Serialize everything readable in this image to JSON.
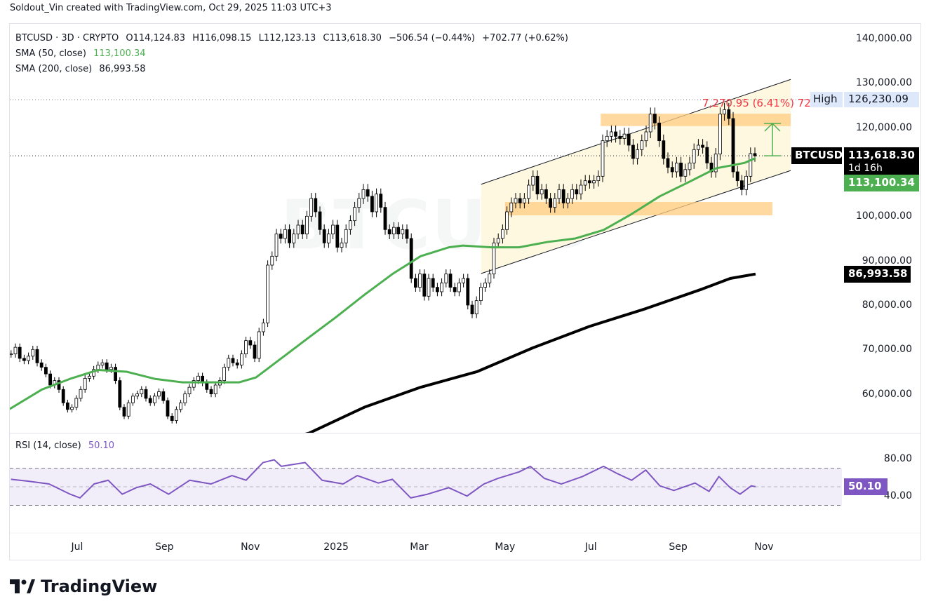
{
  "credit": "Soldout_Vin created with TradingView.com, Oct 29, 2025 11:03 UTC+3",
  "legend": {
    "symbol_line": "BTCUSD · 3D · CRYPTO",
    "open": "O114,124.83",
    "high": "H116,098.15",
    "low": "L112,123.13",
    "close": "C113,618.30",
    "change": "−506.54 (−0.44%)",
    "change2": "+702.77 (+0.62%)",
    "sma50_label": "SMA (50, close)",
    "sma50_value": "113,100.34",
    "sma200_label": "SMA (200, close)",
    "sma200_value": "86,993.58",
    "rsi_label": "RSI (14, close)",
    "rsi_value": "50.10"
  },
  "watermark": "BTCUSD",
  "colors": {
    "up_body": "#ffffff",
    "down_body": "#000000",
    "sma50": "#4caf50",
    "sma200": "#000000",
    "rsi": "#7e57c2",
    "zone": "#ffcc80",
    "channel_fill": "#fff8e1",
    "measure_text": "#f23645",
    "measure_arrow": "#4caf50"
  },
  "chart_data": [
    {
      "type": "candlestick",
      "interval": "3D",
      "ylim": [
        53000,
        146000
      ],
      "y_ticks": [
        "140,000.00",
        "130,000.00",
        "120,000.00",
        "100,000.00",
        "90,000.00",
        "80,000.00",
        "70,000.00",
        "60,000.00"
      ],
      "y_tick_values": [
        140000,
        130000,
        120000,
        100000,
        90000,
        80000,
        70000,
        60000
      ],
      "x_ticks": [
        {
          "label": "Jul",
          "date": "2024-07-01"
        },
        {
          "label": "Sep",
          "date": "2024-09-01"
        },
        {
          "label": "Nov",
          "date": "2024-11-01"
        },
        {
          "label": "2025",
          "date": "2025-01-01"
        },
        {
          "label": "Mar",
          "date": "2025-03-01"
        },
        {
          "label": "May",
          "date": "2025-05-01"
        },
        {
          "label": "Jul",
          "date": "2025-07-01"
        },
        {
          "label": "Sep",
          "date": "2025-09-01"
        },
        {
          "label": "Nov",
          "date": "2025-11-01"
        }
      ],
      "closes": [
        69000,
        70500,
        68000,
        67500,
        68500,
        70000,
        67000,
        66000,
        64500,
        62000,
        63000,
        61000,
        58000,
        56500,
        57000,
        59000,
        61000,
        63500,
        64000,
        65500,
        66500,
        67000,
        65500,
        66000,
        63000,
        57000,
        55000,
        58000,
        59500,
        60000,
        61000,
        59000,
        58000,
        59500,
        60500,
        58500,
        55000,
        54000,
        56500,
        58000,
        60000,
        61500,
        63000,
        64000,
        62500,
        61000,
        60000,
        62000,
        63000,
        66000,
        68000,
        67000,
        66500,
        69000,
        72000,
        71000,
        68000,
        74000,
        76000,
        89000,
        91000,
        96000,
        95000,
        97000,
        94000,
        96000,
        98000,
        96000,
        100000,
        104000,
        101000,
        97000,
        94000,
        96000,
        98000,
        93000,
        94000,
        97000,
        99000,
        102000,
        104000,
        106000,
        104500,
        101000,
        105000,
        102000,
        97000,
        96000,
        97500,
        96000,
        97000,
        95000,
        86000,
        84000,
        87000,
        82000,
        86000,
        84000,
        83000,
        85000,
        87000,
        84000,
        83000,
        85000,
        86000,
        80000,
        78000,
        81000,
        84000,
        85000,
        87000,
        94000,
        95000,
        97000,
        101000,
        103000,
        104000,
        103000,
        104000,
        107000,
        109000,
        105000,
        106000,
        104000,
        102000,
        104000,
        106000,
        103000,
        104000,
        106000,
        105000,
        107000,
        108000,
        107500,
        108000,
        109000,
        117000,
        118000,
        119000,
        118000,
        117500,
        118500,
        116000,
        113000,
        115000,
        117000,
        119000,
        123000,
        121000,
        117000,
        113000,
        111000,
        110000,
        112000,
        109000,
        110500,
        112000,
        115000,
        116000,
        115500,
        112000,
        110000,
        114000,
        123000,
        124000,
        122000,
        110000,
        108000,
        106000,
        109000,
        114124.83,
        113618.3
      ],
      "current": {
        "symbol": "BTCUSD",
        "price": "113,618.30",
        "countdown": "1d 16h",
        "value": 113618.3
      },
      "high_marker": {
        "label": "High",
        "price": "126,230.09",
        "value": 126230.09
      },
      "series": [
        {
          "name": "SMA (50, close)",
          "tag": "113,100.34",
          "points": [
            [
              "2024-05-14",
              56600
            ],
            [
              "2024-06-06",
              61000
            ],
            [
              "2024-06-26",
              63400
            ],
            [
              "2024-07-16",
              65400
            ],
            [
              "2024-08-05",
              65000
            ],
            [
              "2024-08-25",
              63400
            ],
            [
              "2024-09-14",
              62600
            ],
            [
              "2024-10-04",
              62600
            ],
            [
              "2024-10-24",
              62600
            ],
            [
              "2024-11-05",
              63700
            ],
            [
              "2024-11-23",
              68000
            ],
            [
              "2024-12-13",
              72800
            ],
            [
              "2025-01-01",
              77300
            ],
            [
              "2025-01-21",
              82300
            ],
            [
              "2025-02-10",
              87000
            ],
            [
              "2025-03-02",
              91000
            ],
            [
              "2025-03-22",
              93000
            ],
            [
              "2025-04-01",
              93400
            ],
            [
              "2025-04-21",
              93000
            ],
            [
              "2025-05-11",
              93000
            ],
            [
              "2025-05-31",
              94200
            ],
            [
              "2025-06-20",
              95000
            ],
            [
              "2025-07-10",
              96900
            ],
            [
              "2025-07-30",
              100500
            ],
            [
              "2025-08-19",
              104500
            ],
            [
              "2025-09-08",
              107600
            ],
            [
              "2025-09-28",
              110800
            ],
            [
              "2025-10-18",
              112000
            ],
            [
              "2025-10-26",
              113100.34
            ]
          ]
        },
        {
          "name": "SMA (200, close)",
          "tag": "86,993.58",
          "points": [
            [
              "2024-11-23",
              49500
            ],
            [
              "2024-12-13",
              51200
            ],
            [
              "2025-01-21",
              57000
            ],
            [
              "2025-03-02",
              61500
            ],
            [
              "2025-04-11",
              65000
            ],
            [
              "2025-05-21",
              70400
            ],
            [
              "2025-06-30",
              75200
            ],
            [
              "2025-08-09",
              79200
            ],
            [
              "2025-09-18",
              83600
            ],
            [
              "2025-10-08",
              86000
            ],
            [
              "2025-10-26",
              86993.58
            ]
          ]
        }
      ],
      "drawings": {
        "channel_upper": [
          [
            "2025-04-14",
            107200
          ],
          [
            "2025-11-20",
            130800
          ]
        ],
        "channel_lower": [
          [
            "2025-04-14",
            87100
          ],
          [
            "2025-11-20",
            110300
          ]
        ],
        "zone_resistance": {
          "from": "2025-07-08",
          "to": "2025-11-20",
          "low": 120300,
          "high": 123100
        },
        "zone_support": {
          "from": "2025-05-01",
          "to": "2025-11-07",
          "low": 100200,
          "high": 103200
        },
        "measure": {
          "date": "2025-11-07",
          "from": 113618.3,
          "to": 120889.25,
          "label": "7,270.95 (6.41%) 72"
        }
      }
    },
    {
      "type": "line",
      "title": "RSI (14, close)",
      "ylim": [
        25,
        90
      ],
      "y_ticks": [
        "80.00",
        "40.00"
      ],
      "bands": [
        30,
        70
      ],
      "midline": 50,
      "tag": "50.10",
      "points": [
        [
          "2024-05-15",
          58
        ],
        [
          "2024-05-27",
          56
        ],
        [
          "2024-06-11",
          53
        ],
        [
          "2024-06-26",
          42
        ],
        [
          "2024-07-03",
          38
        ],
        [
          "2024-07-13",
          53
        ],
        [
          "2024-07-23",
          57
        ],
        [
          "2024-08-02",
          42
        ],
        [
          "2024-08-12",
          49
        ],
        [
          "2024-08-22",
          53
        ],
        [
          "2024-09-04",
          42
        ],
        [
          "2024-09-19",
          57
        ],
        [
          "2024-10-04",
          53
        ],
        [
          "2024-10-19",
          62
        ],
        [
          "2024-10-29",
          57
        ],
        [
          "2024-11-10",
          76
        ],
        [
          "2024-11-18",
          79
        ],
        [
          "2024-11-23",
          72
        ],
        [
          "2024-12-10",
          76
        ],
        [
          "2024-12-22",
          57
        ],
        [
          "2025-01-06",
          53
        ],
        [
          "2025-01-16",
          62
        ],
        [
          "2025-01-31",
          54
        ],
        [
          "2025-02-10",
          58
        ],
        [
          "2025-02-23",
          38
        ],
        [
          "2025-03-07",
          42
        ],
        [
          "2025-03-22",
          49
        ],
        [
          "2025-04-04",
          40
        ],
        [
          "2025-04-16",
          53
        ],
        [
          "2025-04-26",
          59
        ],
        [
          "2025-05-11",
          66
        ],
        [
          "2025-05-19",
          72
        ],
        [
          "2025-05-29",
          59
        ],
        [
          "2025-06-10",
          53
        ],
        [
          "2025-06-25",
          61
        ],
        [
          "2025-07-10",
          72
        ],
        [
          "2025-07-20",
          64
        ],
        [
          "2025-07-30",
          57
        ],
        [
          "2025-08-09",
          68
        ],
        [
          "2025-08-19",
          51
        ],
        [
          "2025-08-29",
          46
        ],
        [
          "2025-09-13",
          54
        ],
        [
          "2025-09-23",
          45
        ],
        [
          "2025-09-30",
          61
        ],
        [
          "2025-10-08",
          49
        ],
        [
          "2025-10-15",
          42
        ],
        [
          "2025-10-23",
          51
        ],
        [
          "2025-10-26",
          50.1
        ]
      ]
    }
  ],
  "branding": "TradingView"
}
